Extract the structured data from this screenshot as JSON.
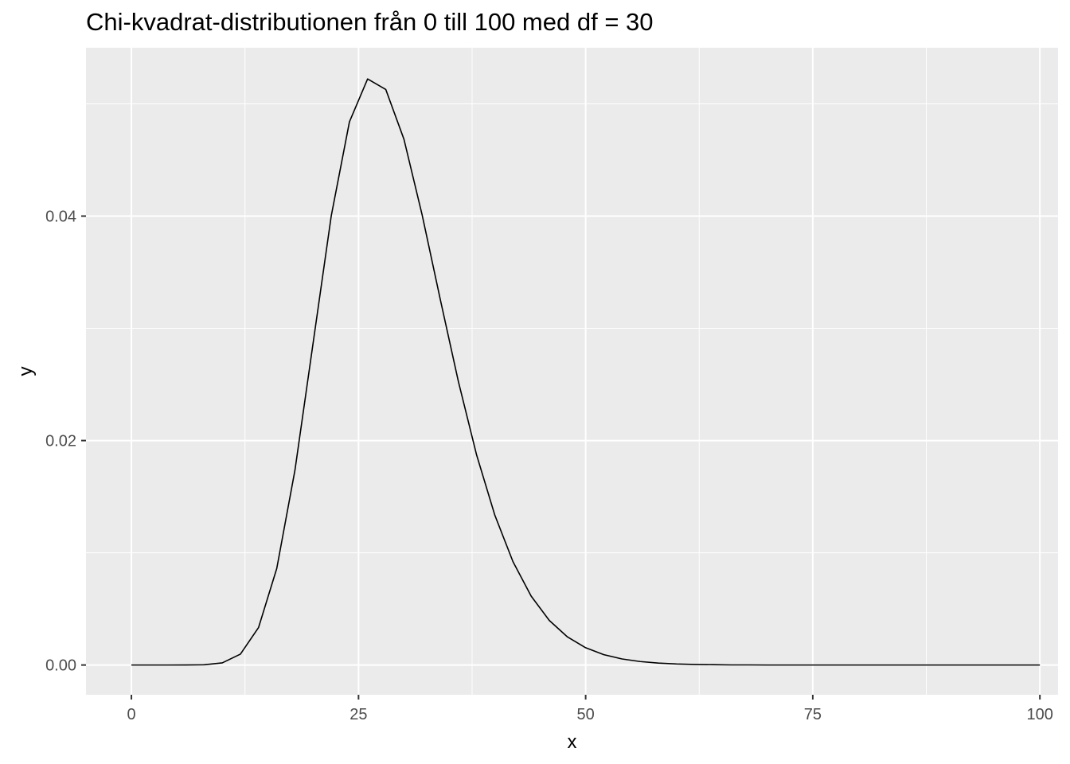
{
  "chart_data": {
    "type": "line",
    "title": "Chi-kvadrat-distributionen från 0 till 100 med df = 30",
    "xlabel": "x",
    "ylabel": "y",
    "xlim": [
      -5,
      102
    ],
    "ylim": [
      -0.00265,
      0.055
    ],
    "x_ticks": [
      0,
      25,
      50,
      75,
      100
    ],
    "x_tick_labels": [
      "0",
      "25",
      "50",
      "75",
      "100"
    ],
    "x_minor_ticks": [
      12.5,
      37.5,
      62.5,
      87.5
    ],
    "y_ticks": [
      0.0,
      0.02,
      0.04
    ],
    "y_tick_labels": [
      "0.00",
      "0.02",
      "0.04"
    ],
    "y_minor_ticks": [
      0.01,
      0.03,
      0.05
    ],
    "grid": true,
    "panel_background": "#ebebeb",
    "grid_color": "#ffffff",
    "line_color": "#000000",
    "series": [
      {
        "x": [
          0,
          2,
          4,
          6,
          8,
          10,
          12,
          14,
          16,
          18,
          20,
          22,
          24,
          26,
          28,
          30,
          32,
          34,
          36,
          38,
          40,
          42,
          44,
          46,
          48,
          50,
          52,
          54,
          56,
          58,
          60,
          62,
          64,
          66,
          68,
          70,
          72,
          74,
          76,
          78,
          80,
          85,
          90,
          95,
          100
        ],
        "values": [
          0,
          0,
          0,
          1e-06,
          2e-05,
          0.00019,
          0.00097,
          0.00335,
          0.00861,
          0.01735,
          0.02868,
          0.04003,
          0.0484,
          0.05222,
          0.05128,
          0.04685,
          0.04011,
          0.03257,
          0.02523,
          0.01871,
          0.01336,
          0.00921,
          0.00614,
          0.00397,
          0.0025,
          0.00154,
          0.00092,
          0.00054,
          0.00031,
          0.00017,
          9e-05,
          5e-05,
          3e-05,
          1e-05,
          1e-05,
          0,
          0,
          0,
          0,
          0,
          0,
          0,
          0,
          0,
          0
        ]
      }
    ]
  }
}
